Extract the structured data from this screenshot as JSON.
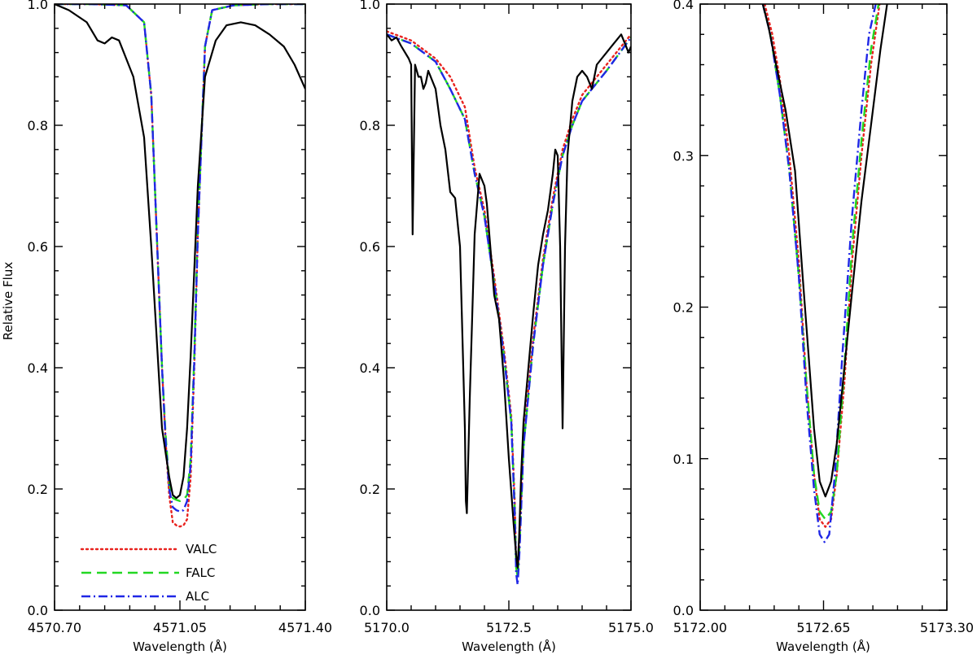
{
  "figure": {
    "ylabel": "Relative Flux",
    "xlabel": "Wavelength (Å)"
  },
  "legend": {
    "placement": "bottom-left of first panel",
    "entries": [
      {
        "label": "VALC",
        "color": "#e8231f",
        "style": "dotted"
      },
      {
        "label": "FALC",
        "color": "#22d822",
        "style": "dashed"
      },
      {
        "label": "ALC",
        "color": "#1f27e6",
        "style": "dash-dot"
      }
    ],
    "observed_color": "#000000"
  },
  "chart_data": [
    {
      "type": "line",
      "xlim": [
        4570.7,
        4571.4
      ],
      "ylim": [
        0.0,
        1.0
      ],
      "xticks": [
        4570.7,
        4571.05,
        4571.4
      ],
      "xtick_labels": [
        "4570.70",
        "4571.05",
        "4571.40"
      ],
      "yticks": [
        0.0,
        0.2,
        0.4,
        0.6,
        0.8,
        1.0
      ],
      "ytick_labels": [
        "0.0",
        "0.2",
        "0.4",
        "0.6",
        "0.8",
        "1.0"
      ],
      "xlabel": "Wavelength (Å)",
      "ylabel": "Relative Flux",
      "series": [
        {
          "key": "observed",
          "color": "#000000",
          "style": "solid",
          "x": [
            4570.7,
            4570.74,
            4570.79,
            4570.82,
            4570.84,
            4570.86,
            4570.88,
            4570.9,
            4570.92,
            4570.95,
            4570.97,
            4570.99,
            4571.0,
            4571.02,
            4571.03,
            4571.04,
            4571.05,
            4571.06,
            4571.07,
            4571.08,
            4571.09,
            4571.1,
            4571.12,
            4571.15,
            4571.18,
            4571.22,
            4571.26,
            4571.3,
            4571.34,
            4571.37,
            4571.4
          ],
          "y": [
            1.0,
            0.99,
            0.97,
            0.94,
            0.935,
            0.945,
            0.94,
            0.91,
            0.88,
            0.78,
            0.6,
            0.4,
            0.3,
            0.22,
            0.19,
            0.185,
            0.19,
            0.22,
            0.3,
            0.42,
            0.56,
            0.7,
            0.88,
            0.94,
            0.965,
            0.97,
            0.965,
            0.95,
            0.93,
            0.9,
            0.86
          ]
        },
        {
          "key": "VALC",
          "color": "#e8231f",
          "style": "dotted",
          "x": [
            4570.7,
            4570.8,
            4570.9,
            4570.95,
            4570.97,
            4570.99,
            4571.0,
            4571.01,
            4571.02,
            4571.03,
            4571.04,
            4571.05,
            4571.06,
            4571.07,
            4571.08,
            4571.09,
            4571.1,
            4571.12,
            4571.14,
            4571.2,
            4571.3,
            4571.4
          ],
          "y": [
            1.0,
            1.0,
            0.998,
            0.97,
            0.85,
            0.55,
            0.4,
            0.28,
            0.19,
            0.145,
            0.14,
            0.138,
            0.14,
            0.15,
            0.22,
            0.4,
            0.62,
            0.93,
            0.99,
            0.998,
            1.0,
            1.0
          ]
        },
        {
          "key": "FALC",
          "color": "#22d822",
          "style": "dashed",
          "x": [
            4570.7,
            4570.8,
            4570.9,
            4570.95,
            4570.97,
            4570.99,
            4571.0,
            4571.01,
            4571.02,
            4571.03,
            4571.04,
            4571.05,
            4571.06,
            4571.07,
            4571.08,
            4571.09,
            4571.1,
            4571.12,
            4571.14,
            4571.2,
            4571.3,
            4571.4
          ],
          "y": [
            1.0,
            1.0,
            0.998,
            0.97,
            0.85,
            0.55,
            0.4,
            0.29,
            0.21,
            0.185,
            0.182,
            0.18,
            0.182,
            0.19,
            0.25,
            0.42,
            0.63,
            0.93,
            0.99,
            0.998,
            1.0,
            1.0
          ]
        },
        {
          "key": "ALC",
          "color": "#1f27e6",
          "style": "dash-dot",
          "x": [
            4570.7,
            4570.8,
            4570.9,
            4570.95,
            4570.97,
            4570.99,
            4571.0,
            4571.01,
            4571.02,
            4571.03,
            4571.04,
            4571.05,
            4571.06,
            4571.07,
            4571.08,
            4571.09,
            4571.1,
            4571.12,
            4571.14,
            4571.2,
            4571.3,
            4571.4
          ],
          "y": [
            1.0,
            1.0,
            0.998,
            0.97,
            0.85,
            0.55,
            0.4,
            0.28,
            0.2,
            0.17,
            0.165,
            0.163,
            0.165,
            0.18,
            0.24,
            0.41,
            0.62,
            0.93,
            0.99,
            0.998,
            1.0,
            1.0
          ]
        }
      ]
    },
    {
      "type": "line",
      "xlim": [
        5170.0,
        5175.0
      ],
      "ylim": [
        0.0,
        1.0
      ],
      "xticks": [
        5170.0,
        5172.5,
        5175.0
      ],
      "xtick_labels": [
        "5170.0",
        "5172.5",
        "5175.0"
      ],
      "yticks": [
        0.0,
        0.2,
        0.4,
        0.6,
        0.8,
        1.0
      ],
      "ytick_labels": [
        "0.0",
        "0.2",
        "0.4",
        "0.6",
        "0.8",
        "1.0"
      ],
      "xlabel": "Wavelength (Å)",
      "series": [
        {
          "key": "observed",
          "color": "#000000",
          "style": "solid",
          "x": [
            5170.0,
            5170.1,
            5170.2,
            5170.3,
            5170.45,
            5170.5,
            5170.53,
            5170.58,
            5170.65,
            5170.7,
            5170.75,
            5170.8,
            5170.85,
            5170.9,
            5170.95,
            5171.0,
            5171.05,
            5171.1,
            5171.2,
            5171.3,
            5171.4,
            5171.5,
            5171.6,
            5171.62,
            5171.64,
            5171.7,
            5171.8,
            5171.9,
            5172.0,
            5172.05,
            5172.1,
            5172.15,
            5172.2,
            5172.3,
            5172.4,
            5172.5,
            5172.6,
            5172.65,
            5172.68,
            5172.71,
            5172.75,
            5172.8,
            5172.9,
            5173.0,
            5173.1,
            5173.2,
            5173.3,
            5173.35,
            5173.4,
            5173.45,
            5173.5,
            5173.55,
            5173.6,
            5173.65,
            5173.7,
            5173.8,
            5173.9,
            5174.0,
            5174.1,
            5174.2,
            5174.3,
            5174.4,
            5174.5,
            5174.6,
            5174.7,
            5174.8,
            5174.9,
            5174.95,
            5175.0
          ],
          "y": [
            0.95,
            0.94,
            0.945,
            0.93,
            0.91,
            0.9,
            0.62,
            0.9,
            0.88,
            0.88,
            0.86,
            0.87,
            0.89,
            0.88,
            0.87,
            0.86,
            0.83,
            0.8,
            0.76,
            0.69,
            0.68,
            0.6,
            0.3,
            0.18,
            0.16,
            0.35,
            0.62,
            0.72,
            0.7,
            0.67,
            0.62,
            0.57,
            0.52,
            0.48,
            0.38,
            0.25,
            0.14,
            0.09,
            0.07,
            0.12,
            0.22,
            0.31,
            0.4,
            0.49,
            0.57,
            0.62,
            0.66,
            0.69,
            0.72,
            0.76,
            0.75,
            0.6,
            0.3,
            0.6,
            0.75,
            0.84,
            0.88,
            0.89,
            0.88,
            0.86,
            0.9,
            0.91,
            0.92,
            0.93,
            0.94,
            0.95,
            0.93,
            0.92,
            0.93
          ]
        },
        {
          "key": "VALC",
          "color": "#e8231f",
          "style": "dotted",
          "x": [
            5170.0,
            5170.5,
            5171.0,
            5171.3,
            5171.6,
            5171.8,
            5172.0,
            5172.2,
            5172.4,
            5172.55,
            5172.62,
            5172.65,
            5172.68,
            5172.72,
            5172.8,
            5173.0,
            5173.2,
            5173.4,
            5173.6,
            5173.8,
            5174.0,
            5174.5,
            5175.0
          ],
          "y": [
            0.955,
            0.94,
            0.91,
            0.88,
            0.83,
            0.73,
            0.66,
            0.55,
            0.43,
            0.32,
            0.18,
            0.08,
            0.06,
            0.12,
            0.28,
            0.45,
            0.58,
            0.68,
            0.76,
            0.81,
            0.85,
            0.9,
            0.95
          ]
        },
        {
          "key": "FALC",
          "color": "#22d822",
          "style": "dashed",
          "x": [
            5170.0,
            5170.5,
            5171.0,
            5171.3,
            5171.6,
            5171.8,
            5172.0,
            5172.2,
            5172.4,
            5172.55,
            5172.62,
            5172.65,
            5172.68,
            5172.72,
            5172.8,
            5173.0,
            5173.2,
            5173.4,
            5173.6,
            5173.8,
            5174.0,
            5174.5,
            5175.0
          ],
          "y": [
            0.95,
            0.935,
            0.905,
            0.86,
            0.81,
            0.72,
            0.65,
            0.54,
            0.42,
            0.31,
            0.17,
            0.07,
            0.055,
            0.11,
            0.27,
            0.44,
            0.57,
            0.67,
            0.75,
            0.8,
            0.84,
            0.89,
            0.945
          ]
        },
        {
          "key": "ALC",
          "color": "#1f27e6",
          "style": "dash-dot",
          "x": [
            5170.0,
            5170.5,
            5171.0,
            5171.3,
            5171.6,
            5171.8,
            5172.0,
            5172.2,
            5172.4,
            5172.55,
            5172.62,
            5172.65,
            5172.68,
            5172.72,
            5172.8,
            5173.0,
            5173.2,
            5173.4,
            5173.6,
            5173.8,
            5174.0,
            5174.5,
            5175.0
          ],
          "y": [
            0.95,
            0.935,
            0.905,
            0.86,
            0.81,
            0.72,
            0.65,
            0.54,
            0.42,
            0.31,
            0.16,
            0.06,
            0.042,
            0.1,
            0.27,
            0.44,
            0.57,
            0.67,
            0.75,
            0.8,
            0.84,
            0.89,
            0.945
          ]
        }
      ]
    },
    {
      "type": "line",
      "xlim": [
        5172.0,
        5173.3
      ],
      "ylim": [
        0.0,
        0.4
      ],
      "xticks": [
        5172.0,
        5172.65,
        5173.3
      ],
      "xtick_labels": [
        "5172.00",
        "5172.65",
        "5173.30"
      ],
      "yticks": [
        0.0,
        0.1,
        0.2,
        0.3,
        0.4
      ],
      "ytick_labels": [
        "0.0",
        "0.1",
        "0.2",
        "0.3",
        "0.4"
      ],
      "xlabel": "Wavelength (Å)",
      "series": [
        {
          "key": "observed",
          "color": "#000000",
          "style": "solid",
          "x": [
            5172.33,
            5172.36,
            5172.4,
            5172.45,
            5172.5,
            5172.54,
            5172.57,
            5172.6,
            5172.63,
            5172.66,
            5172.69,
            5172.72,
            5172.76,
            5172.8,
            5172.85,
            5172.9,
            5172.95,
            5172.985
          ],
          "y": [
            0.4,
            0.385,
            0.36,
            0.33,
            0.29,
            0.22,
            0.17,
            0.12,
            0.085,
            0.075,
            0.085,
            0.11,
            0.16,
            0.21,
            0.27,
            0.32,
            0.37,
            0.4
          ]
        },
        {
          "key": "VALC",
          "color": "#e8231f",
          "style": "dotted",
          "x": [
            5172.34,
            5172.38,
            5172.42,
            5172.47,
            5172.52,
            5172.56,
            5172.6,
            5172.63,
            5172.66,
            5172.69,
            5172.72,
            5172.76,
            5172.8,
            5172.85,
            5172.9,
            5172.945
          ],
          "y": [
            0.4,
            0.38,
            0.35,
            0.3,
            0.23,
            0.15,
            0.09,
            0.06,
            0.055,
            0.06,
            0.09,
            0.15,
            0.23,
            0.3,
            0.36,
            0.4
          ]
        },
        {
          "key": "FALC",
          "color": "#22d822",
          "style": "dashed",
          "x": [
            5172.33,
            5172.37,
            5172.42,
            5172.47,
            5172.52,
            5172.56,
            5172.6,
            5172.63,
            5172.66,
            5172.69,
            5172.72,
            5172.76,
            5172.8,
            5172.85,
            5172.9,
            5172.94
          ],
          "y": [
            0.4,
            0.38,
            0.34,
            0.29,
            0.22,
            0.15,
            0.09,
            0.065,
            0.06,
            0.065,
            0.09,
            0.16,
            0.24,
            0.31,
            0.37,
            0.4
          ]
        },
        {
          "key": "ALC",
          "color": "#1f27e6",
          "style": "dash-dot",
          "x": [
            5172.33,
            5172.37,
            5172.42,
            5172.47,
            5172.52,
            5172.56,
            5172.6,
            5172.63,
            5172.655,
            5172.68,
            5172.71,
            5172.75,
            5172.8,
            5172.85,
            5172.89,
            5172.925
          ],
          "y": [
            0.4,
            0.38,
            0.34,
            0.29,
            0.22,
            0.14,
            0.08,
            0.05,
            0.045,
            0.05,
            0.09,
            0.17,
            0.26,
            0.33,
            0.38,
            0.4
          ]
        }
      ]
    }
  ]
}
